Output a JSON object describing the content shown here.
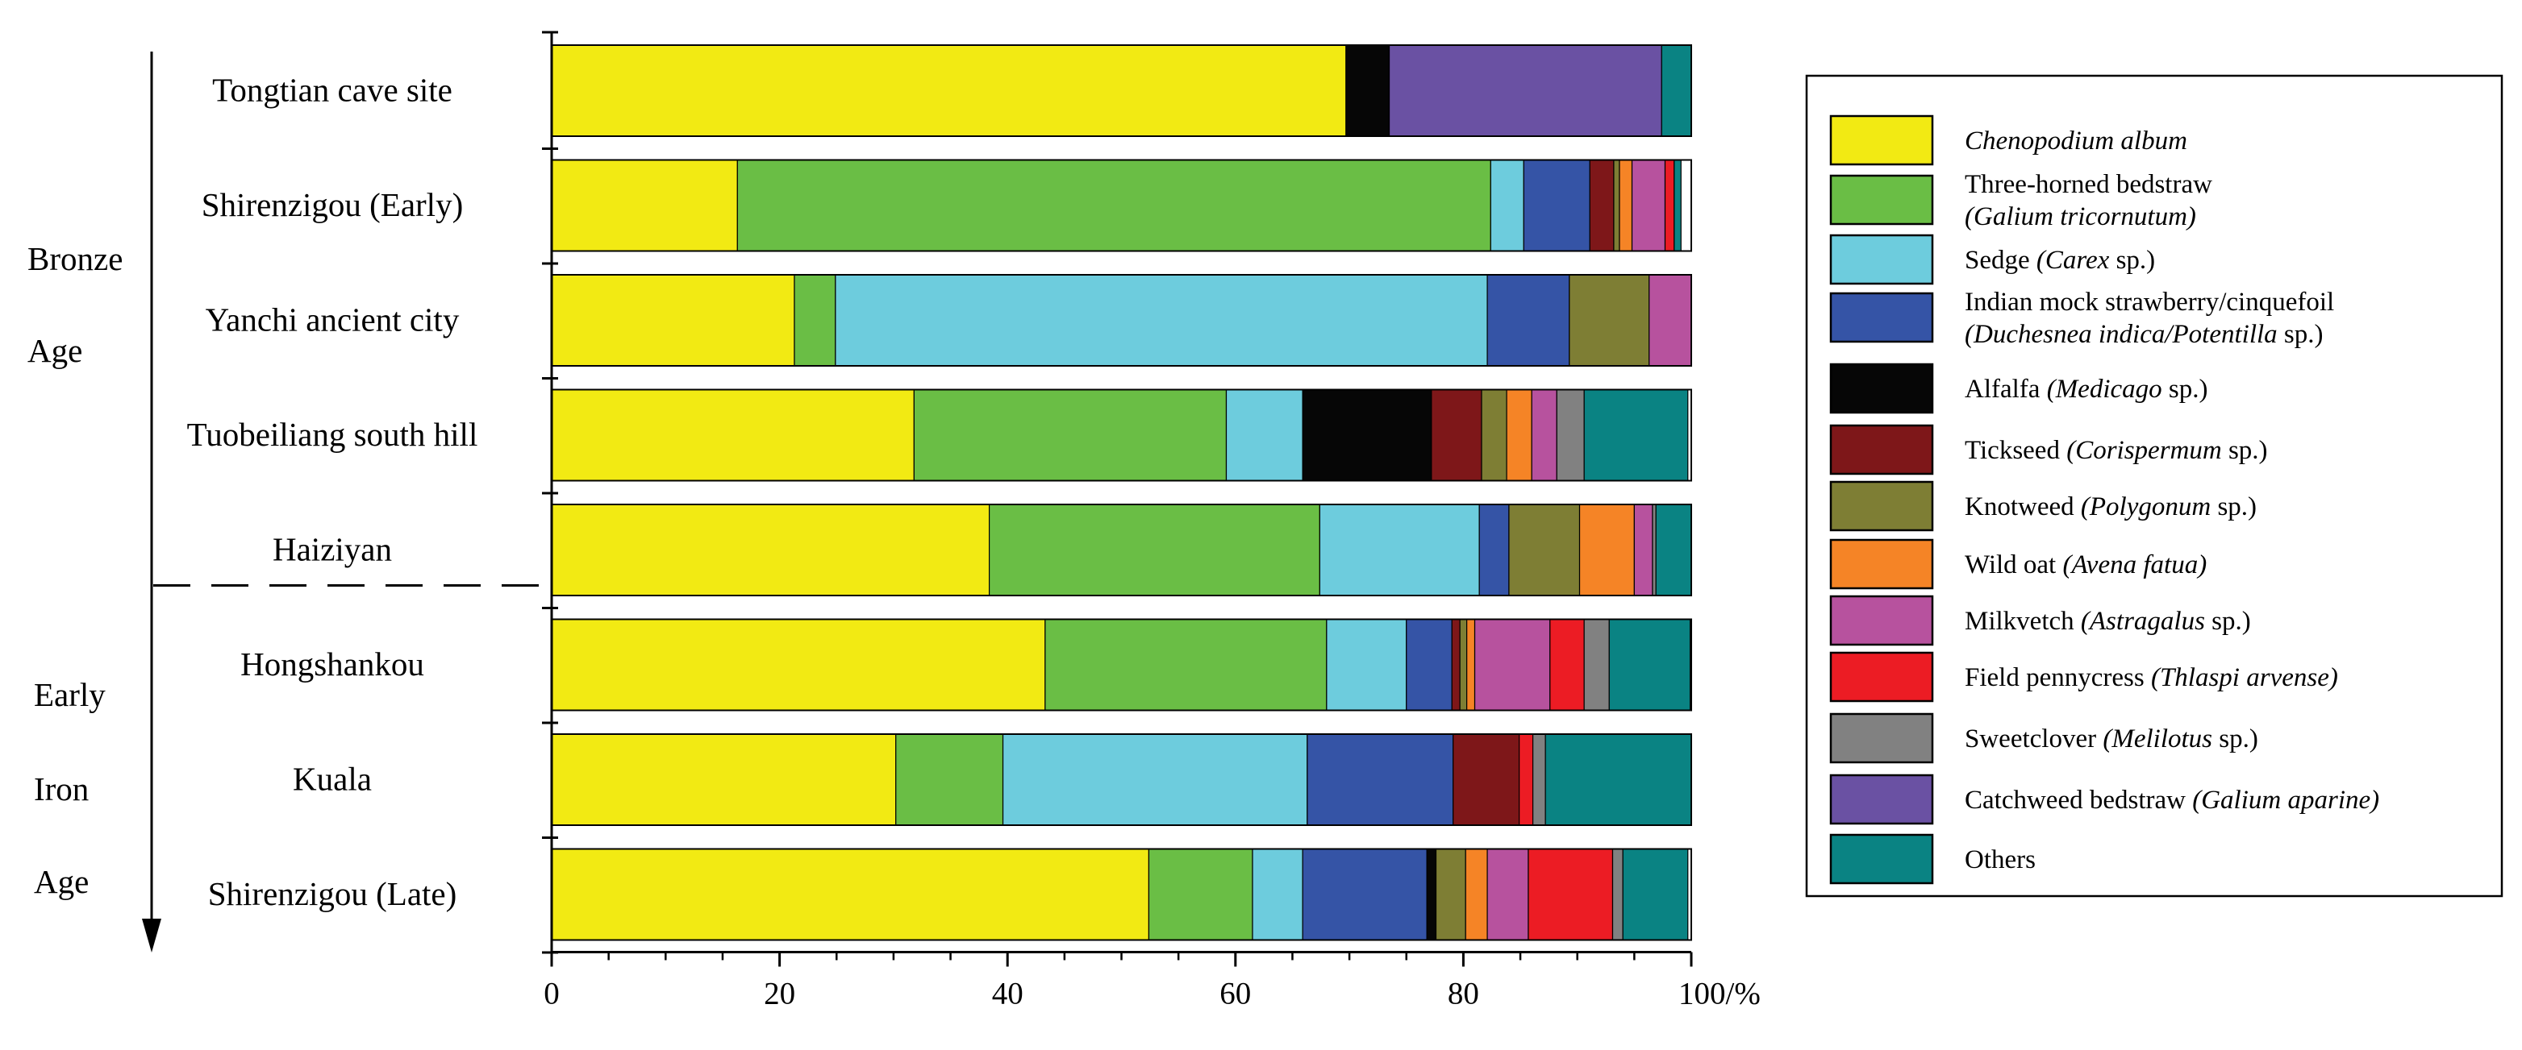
{
  "chart_data": {
    "type": "bar",
    "orientation": "horizontal",
    "stacked": true,
    "normalized_percent": true,
    "xlim": [
      0,
      100
    ],
    "x_ticks": [
      "0",
      "20",
      "40",
      "60",
      "80",
      "100/%"
    ],
    "categories": [
      "Tongtian cave site",
      "Shirenzigou (Early)",
      "Yanchi ancient city",
      "Tuobeiliang south hill",
      "Haiziyan",
      "Hongshankou",
      "Kuala",
      "Shirenzigou (Late)"
    ],
    "periods": [
      {
        "lines": [
          "Bronze",
          "Age"
        ],
        "categories": [
          0,
          4
        ]
      },
      {
        "lines": [
          "Early",
          "Iron",
          "Age"
        ],
        "categories": [
          5,
          7
        ]
      }
    ],
    "legend_position": "right",
    "series": [
      {
        "name": "Chenopodium album",
        "name_parts": [
          {
            "t": "Chenopodium album",
            "i": true
          }
        ],
        "color": "#F2EA13",
        "values": [
          69.7,
          16.3,
          21.3,
          31.8,
          38.4,
          43.3,
          30.2,
          52.4
        ]
      },
      {
        "name": "Three-horned bedstraw (Galium tricornutum)",
        "name_parts": [
          {
            "t": "Three-horned bedstraw",
            "i": false
          },
          {
            "t": "\n(Galium tricornutum)",
            "i": true
          }
        ],
        "color": "#6ABE45",
        "values": [
          0,
          66.1,
          3.6,
          27.4,
          29.0,
          24.7,
          9.4,
          9.1
        ]
      },
      {
        "name": "Sedge (Carex sp.)",
        "name_parts": [
          {
            "t": "Sedge ",
            "i": false
          },
          {
            "t": "(Carex",
            "i": true
          },
          {
            "t": " sp.)",
            "i": false
          }
        ],
        "color": "#6DCCDD",
        "values": [
          0,
          2.9,
          57.2,
          6.7,
          14.0,
          7.0,
          26.7,
          4.4
        ]
      },
      {
        "name": "Indian mock strawberry/cinquefoil (Duchesnea indica/Potentilla sp.)",
        "name_parts": [
          {
            "t": "Indian mock strawberry/cinquefoil",
            "i": false
          },
          {
            "t": "\n(Duchesnea indica/Potentilla",
            "i": true
          },
          {
            "t": " sp.)",
            "i": false
          }
        ],
        "color": "#3554A6",
        "values": [
          0,
          5.8,
          7.2,
          0,
          2.6,
          4.0,
          12.8,
          10.9
        ]
      },
      {
        "name": "Alfalfa (Medicago sp.)",
        "name_parts": [
          {
            "t": "Alfalfa ",
            "i": false
          },
          {
            "t": "(Medicago",
            "i": true
          },
          {
            "t": " sp.)",
            "i": false
          }
        ],
        "color": "#060606",
        "values": [
          3.8,
          0,
          0,
          11.3,
          0,
          0,
          0,
          0.8
        ]
      },
      {
        "name": "Tickseed (Corispermum sp.)",
        "name_parts": [
          {
            "t": "Tickseed ",
            "i": false
          },
          {
            "t": "(Corispermum",
            "i": true
          },
          {
            "t": " sp.)",
            "i": false
          }
        ],
        "color": "#7E1719",
        "values": [
          0,
          2.1,
          0,
          4.4,
          0,
          0.7,
          5.8,
          0
        ]
      },
      {
        "name": "Knotweed (Polygonum sp.)",
        "name_parts": [
          {
            "t": "Knotweed ",
            "i": false
          },
          {
            "t": "(Polygonum",
            "i": true
          },
          {
            "t": " sp.)",
            "i": false
          }
        ],
        "color": "#7E7E34",
        "values": [
          0,
          0.5,
          7.0,
          2.2,
          6.2,
          0.6,
          0,
          2.6
        ]
      },
      {
        "name": "Wild oat (Avena fatua)",
        "name_parts": [
          {
            "t": "Wild oat ",
            "i": false
          },
          {
            "t": "(Avena fatua)",
            "i": true
          }
        ],
        "color": "#F58426",
        "values": [
          0,
          1.1,
          0,
          2.2,
          4.8,
          0.7,
          0,
          1.9
        ]
      },
      {
        "name": "Milkvetch (Astragalus sp.)",
        "name_parts": [
          {
            "t": "Milkvetch ",
            "i": false
          },
          {
            "t": "(Astragalus",
            "i": true
          },
          {
            "t": " sp.)",
            "i": false
          }
        ],
        "color": "#B7529E",
        "values": [
          0,
          2.9,
          3.7,
          2.2,
          1.6,
          6.6,
          0,
          3.6
        ]
      },
      {
        "name": "Field pennycress (Thlaspi arvense)",
        "name_parts": [
          {
            "t": "Field pennycress ",
            "i": false
          },
          {
            "t": "(Thlaspi arvense)",
            "i": true
          }
        ],
        "color": "#EC1C24",
        "values": [
          0,
          0.8,
          0,
          0,
          0,
          3.0,
          1.2,
          7.4
        ]
      },
      {
        "name": "Sweetclover (Melilotus sp.)",
        "name_parts": [
          {
            "t": "Sweetclover ",
            "i": false
          },
          {
            "t": "(Melilotus",
            "i": true
          },
          {
            "t": " sp.)",
            "i": false
          }
        ],
        "color": "#818181",
        "values": [
          0,
          0,
          0,
          2.4,
          0.3,
          2.2,
          1.1,
          0.9
        ]
      },
      {
        "name": "Catchweed bedstraw (Galium aparine)",
        "name_parts": [
          {
            "t": "Catchweed bedstraw ",
            "i": false
          },
          {
            "t": "(Galium aparine)",
            "i": true
          }
        ],
        "color": "#6A51A3",
        "values": [
          23.9,
          0,
          0,
          0,
          0,
          0,
          0,
          0
        ]
      },
      {
        "name": "Others",
        "name_parts": [
          {
            "t": "Others",
            "i": false
          }
        ],
        "color": "#0A8383",
        "values": [
          2.6,
          0.6,
          0,
          9.1,
          3.1,
          7.1,
          12.8,
          5.7
        ]
      }
    ]
  }
}
